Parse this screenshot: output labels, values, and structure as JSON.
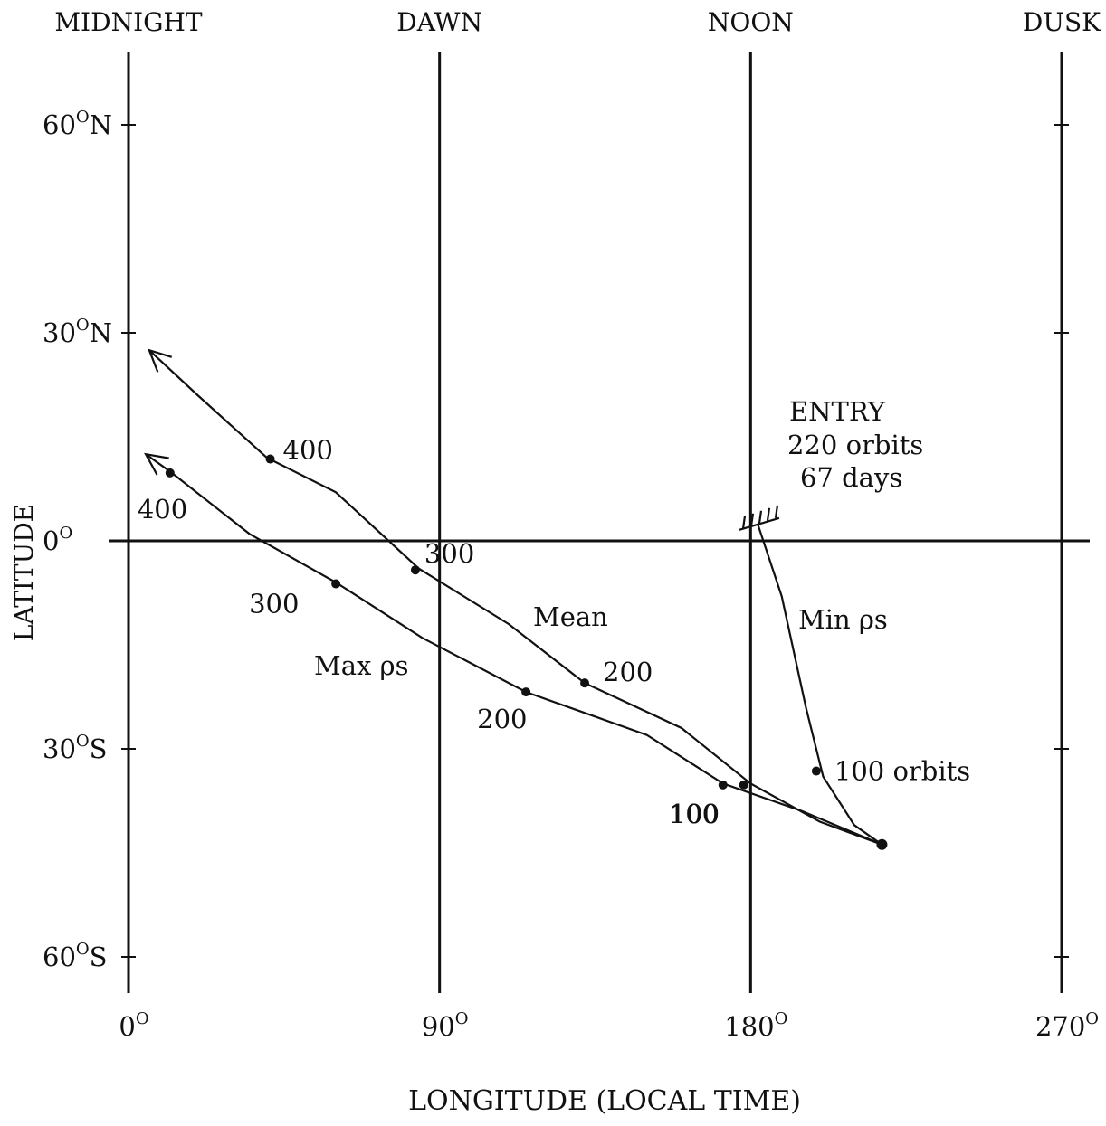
{
  "chart_data": {
    "type": "line",
    "title": "",
    "xlabel": "LONGITUDE (LOCAL TIME)",
    "ylabel": "LATITUDE",
    "xlim": [
      0,
      270
    ],
    "ylim": [
      -60,
      60
    ],
    "grid": false,
    "x_ticks": [
      {
        "value": 0,
        "label": "0",
        "sup": "O"
      },
      {
        "value": 90,
        "label": "90",
        "sup": "O"
      },
      {
        "value": 180,
        "label": "180",
        "sup": "O"
      },
      {
        "value": 270,
        "label": "270",
        "sup": "O"
      }
    ],
    "y_ticks": [
      {
        "value": 60,
        "label": "60",
        "sup": "O",
        "suffix": "N"
      },
      {
        "value": 30,
        "label": "30",
        "sup": "O",
        "suffix": "N"
      },
      {
        "value": 0,
        "label": "0",
        "sup": "O",
        "suffix": ""
      },
      {
        "value": -30,
        "label": "30",
        "sup": "O",
        "suffix": "S"
      },
      {
        "value": -60,
        "label": "60",
        "sup": "O",
        "suffix": "S"
      }
    ],
    "time_labels": [
      {
        "x": 0,
        "label": "MIDNIGHT"
      },
      {
        "x": 90,
        "label": "DAWN"
      },
      {
        "x": 180,
        "label": "NOON"
      },
      {
        "x": 270,
        "label": "DUSK"
      }
    ],
    "series": [
      {
        "name": "Mean",
        "curve": [
          [
            218,
            -43.8
          ],
          [
            200,
            -40.5
          ],
          [
            180,
            -35
          ],
          [
            160,
            -27
          ],
          [
            132,
            -20.5
          ],
          [
            110,
            -12
          ],
          [
            84,
            -4
          ],
          [
            60,
            7
          ],
          [
            40,
            12
          ],
          [
            20,
            21
          ],
          [
            6,
            27.5
          ]
        ],
        "markers": [
          {
            "x": 178,
            "y": -35.2,
            "label": "100"
          },
          {
            "x": 132,
            "y": -20.5,
            "label": "200"
          },
          {
            "x": 83,
            "y": -4.2,
            "label": "300"
          },
          {
            "x": 41,
            "y": 11.8,
            "label": "400"
          }
        ]
      },
      {
        "name": "Max ρs",
        "curve": [
          [
            218,
            -43.8
          ],
          [
            195,
            -39
          ],
          [
            172,
            -35
          ],
          [
            150,
            -28
          ],
          [
            115,
            -21.8
          ],
          [
            85,
            -14
          ],
          [
            60,
            -6
          ],
          [
            35,
            1
          ],
          [
            12,
            10
          ],
          [
            5,
            12.5
          ]
        ],
        "markers": [
          {
            "x": 172,
            "y": -35.2,
            "label": "100"
          },
          {
            "x": 115,
            "y": -21.8,
            "label": "200"
          },
          {
            "x": 60,
            "y": -6.2,
            "label": "300"
          },
          {
            "x": 12,
            "y": 9.8,
            "label": "400"
          }
        ]
      },
      {
        "name": "Min ρs",
        "curve": [
          [
            218,
            -43.8
          ],
          [
            210,
            -41
          ],
          [
            201,
            -34
          ],
          [
            196,
            -24
          ],
          [
            189,
            -8
          ],
          [
            182,
            2.5
          ]
        ],
        "markers": [
          {
            "x": 199,
            "y": -33.2,
            "label": "100 orbits"
          }
        ]
      }
    ],
    "start_point": {
      "x": 218,
      "y": -43.8
    },
    "annotations": {
      "entry_line1": "ENTRY",
      "entry_line2": "220 orbits",
      "entry_line3": "67 days",
      "mean": "Mean",
      "max_rho_s": "Max ρs",
      "min_rho_s": "Min ρs"
    }
  }
}
